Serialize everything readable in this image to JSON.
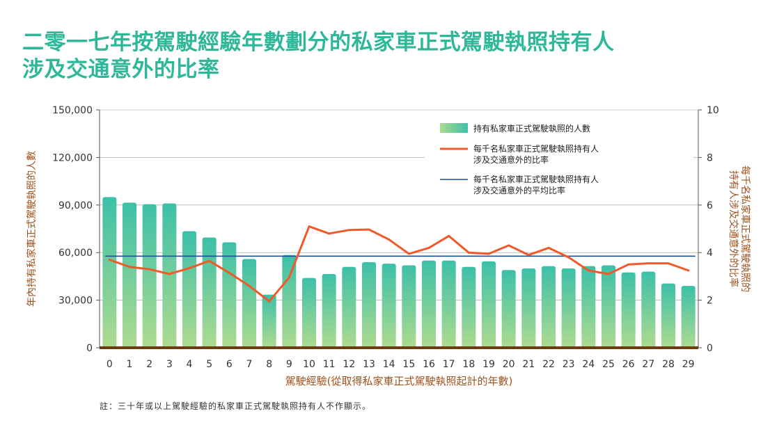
{
  "title_line1": "二零一七年按駕駛經驗年數劃分的私家車正式駕駛執照持有人",
  "title_line2": "涉及交通意外的比率",
  "note": "註：三十年或以上駕駛經驗的私家車正式駕駛執照持有人不作顯示。",
  "colors": {
    "title": "#2fb79a",
    "bar_top": "#3cc0a8",
    "bar_bottom": "#aedb90",
    "line": "#ef5a2a",
    "average": "#1f4e9b",
    "axis_label": "#a0521d",
    "baseline": "#6b3d12"
  },
  "chart_data": {
    "type": "bar+line",
    "xlabel": "駕駛經驗(從取得私家車正式駕駛執照起計的年數)",
    "ylabel_left": "年內持有私家車正式駕駛執照的人數",
    "ylabel_right": "每千名私家車正式駕駛執照的持有人涉及交通意外的比率",
    "categories": [
      "0",
      "1",
      "2",
      "3",
      "4",
      "5",
      "6",
      "7",
      "8",
      "9",
      "10",
      "11",
      "12",
      "13",
      "14",
      "15",
      "16",
      "17",
      "18",
      "19",
      "20",
      "21",
      "22",
      "23",
      "24",
      "25",
      "26",
      "27",
      "28",
      "29"
    ],
    "y_left_lim": [
      0,
      150000
    ],
    "y_left_ticks": [
      "0",
      "30,000",
      "60,000",
      "90,000",
      "120,000",
      "150,000"
    ],
    "y_right_lim": [
      0,
      10
    ],
    "y_right_ticks": [
      "0",
      "2",
      "4",
      "6",
      "8",
      "10"
    ],
    "legend": {
      "bars": "持有私家車正式駕駛執照的人數",
      "line": [
        "每千名私家車正式駕駛執照持有人",
        "涉及交通意外的比率"
      ],
      "average": [
        "每千名私家車正式駕駛執照持有人",
        "涉及交通意外的平均比率"
      ]
    },
    "series": [
      {
        "name": "持有私家車正式駕駛執照的人數",
        "axis": "left",
        "kind": "bar",
        "values": [
          95000,
          91500,
          90500,
          91000,
          73500,
          69500,
          66500,
          56000,
          33500,
          58500,
          44000,
          46500,
          51000,
          54000,
          53000,
          52000,
          55000,
          55000,
          51000,
          54500,
          49000,
          50000,
          51500,
          50000,
          51500,
          52000,
          47500,
          48000,
          40500,
          39000
        ]
      },
      {
        "name": "每千名私家車正式駕駛執照持有人涉及交通意外的比率",
        "axis": "right",
        "kind": "line",
        "values": [
          3.7,
          3.4,
          3.3,
          3.1,
          3.35,
          3.65,
          3.15,
          2.6,
          1.95,
          2.95,
          5.1,
          4.8,
          4.95,
          4.97,
          4.55,
          3.95,
          4.2,
          4.7,
          4.0,
          3.95,
          4.3,
          3.9,
          4.2,
          3.8,
          3.25,
          3.1,
          3.5,
          3.55,
          3.55,
          3.25
        ]
      },
      {
        "name": "每千名私家車正式駕駛執照持有人涉及交通意外的平均比率",
        "axis": "right",
        "kind": "average",
        "value": 3.85
      }
    ]
  }
}
